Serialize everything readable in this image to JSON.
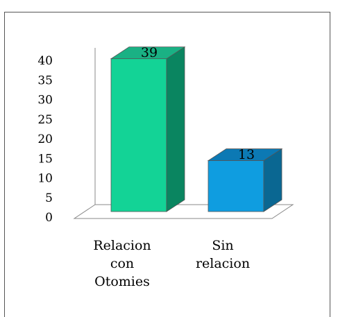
{
  "chart_data": {
    "type": "bar",
    "style": "3d",
    "categories": [
      "Relacion con Otomies",
      "Sin relacion"
    ],
    "category_lines": [
      [
        "Relacion",
        "con",
        "Otomies"
      ],
      [
        "Sin",
        "relacion"
      ]
    ],
    "values": [
      39,
      13
    ],
    "data_labels": [
      "39",
      "13"
    ],
    "ylim": [
      0,
      40
    ],
    "yticks": [
      "0",
      "5",
      "10",
      "15",
      "20",
      "25",
      "30",
      "35",
      "40"
    ],
    "title": "",
    "xlabel": "",
    "ylabel": "",
    "grid": false,
    "legend": false,
    "colors": [
      {
        "front": "#13d396",
        "side": "#0a8560",
        "top": "#1ab184"
      },
      {
        "front": "#0f9de0",
        "side": "#0a6792",
        "top": "#0c79b4"
      }
    ]
  }
}
